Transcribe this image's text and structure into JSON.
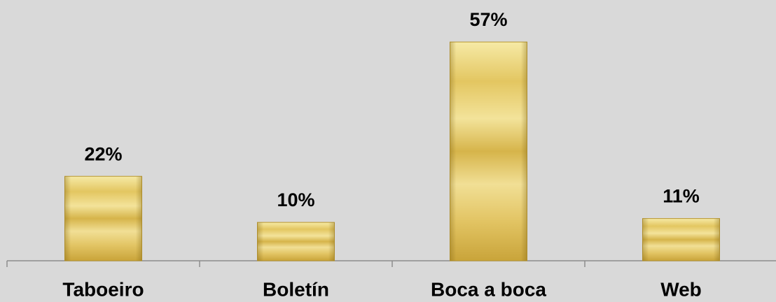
{
  "chart_data": {
    "type": "bar",
    "categories": [
      "Taboeiro",
      "Boletín",
      "Boca a boca",
      "Web"
    ],
    "values": [
      22,
      10,
      57,
      11
    ],
    "value_labels": [
      "22%",
      "10%",
      "57%",
      "11%"
    ],
    "color": "#e6cf6e"
  }
}
